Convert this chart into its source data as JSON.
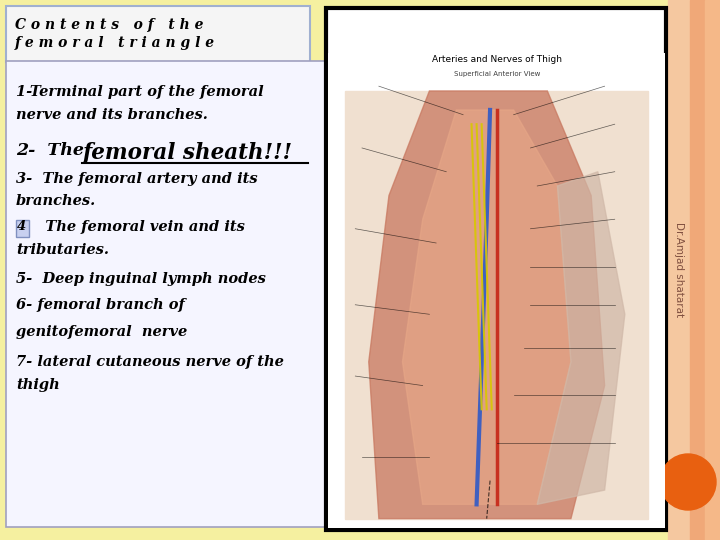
{
  "bg_color": "#f5f0a0",
  "right_bg_color": "#f5c8a0",
  "title_box_text_line1": "C o n t e n t s   o f   t h e",
  "title_box_text_line2": "f e m o r a l   t r i a n g l e",
  "title_box_bg": "#f5f5f5",
  "title_box_border": "#a0b0d0",
  "content_box_bg": "#f5f5ff",
  "content_box_border": "#a0a0c0",
  "line1": "1-Terminal part of the femoral",
  "line2": "nerve and its branches.",
  "line3_prefix": "2-  The ",
  "line3_underline": "femoral sheath!!!",
  "line4": "3-  The femoral artery and its",
  "line5": "branches.",
  "line6_box_char": "4",
  "line6_rest": "   The femoral vein and its",
  "line7": "tributaries.",
  "line8": "5-  Deep inguinal lymph nodes",
  "line9": "6- femoral branch of",
  "line10": "genitofemoral  nerve",
  "line11": "7- lateral cutaneous nerve of the",
  "line12": "thigh",
  "side_text": "Dr.Amjad shatarat",
  "orange_circle_color": "#e86010",
  "anatomy_image_title": "Arteries and Nerves of Thigh",
  "anatomy_image_subtitle": "Superficial Anterior View"
}
